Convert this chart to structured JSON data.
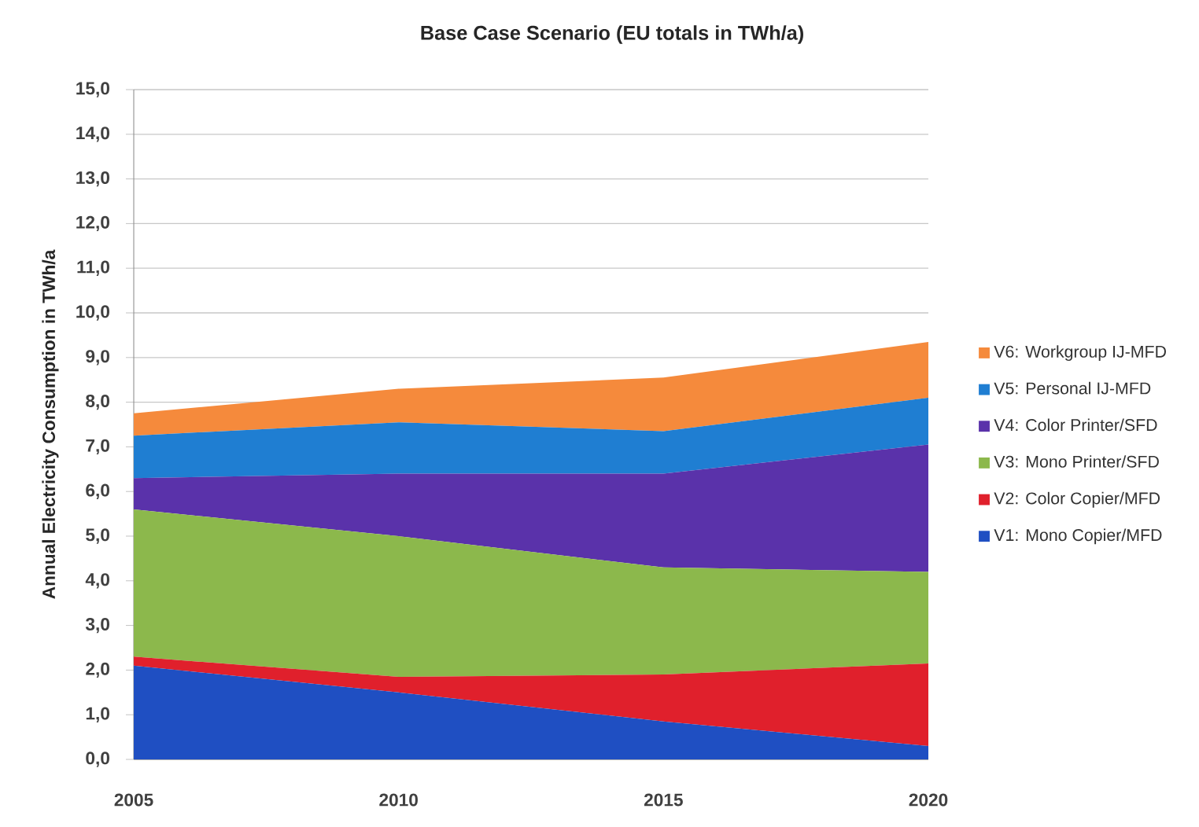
{
  "chart_data": {
    "type": "area",
    "title": "Base Case Scenario (EU totals in TWh/a)",
    "ylabel": "Annual Electricity Consumption in TWh/a",
    "x": [
      2005,
      2010,
      2015,
      2020
    ],
    "xlim": [
      2005,
      2020
    ],
    "xticks": [
      2005,
      2010,
      2015,
      2020
    ],
    "ylim": [
      0,
      15
    ],
    "yticks": [
      {
        "value": 0,
        "label": "0,0"
      },
      {
        "value": 1,
        "label": "1,0"
      },
      {
        "value": 2,
        "label": "2,0"
      },
      {
        "value": 3,
        "label": "3,0"
      },
      {
        "value": 4,
        "label": "4,0"
      },
      {
        "value": 5,
        "label": "5,0"
      },
      {
        "value": 6,
        "label": "6,0"
      },
      {
        "value": 7,
        "label": "7,0"
      },
      {
        "value": 8,
        "label": "8,0"
      },
      {
        "value": 9,
        "label": "9,0"
      },
      {
        "value": 10,
        "label": "10,0"
      },
      {
        "value": 11,
        "label": "11,0"
      },
      {
        "value": 12,
        "label": "12,0"
      },
      {
        "value": 13,
        "label": "13,0"
      },
      {
        "value": 14,
        "label": "14,0"
      },
      {
        "value": 15,
        "label": "15,0"
      }
    ],
    "stacked": true,
    "grid": "y",
    "legend": "right",
    "series": [
      {
        "name": "V1: Mono Copier/MFD",
        "color": "#1f4fc2",
        "values": [
          2.1,
          1.5,
          0.85,
          0.3
        ]
      },
      {
        "name": "V2: Color Copier/MFD",
        "color": "#e0202c",
        "values": [
          0.2,
          0.35,
          1.05,
          1.85
        ]
      },
      {
        "name": "V3: Mono Printer/SFD",
        "color": "#8cb84c",
        "values": [
          3.3,
          3.15,
          2.4,
          2.05
        ]
      },
      {
        "name": "V4: Color Printer/SFD",
        "color": "#5a32aa",
        "values": [
          0.7,
          1.4,
          2.1,
          2.85
        ]
      },
      {
        "name": "V5: Personal IJ-MFD",
        "color": "#1f7ed2",
        "values": [
          0.95,
          1.15,
          0.95,
          1.05
        ]
      },
      {
        "name": "V6: Workgroup IJ-MFD",
        "color": "#f58a3c",
        "values": [
          0.5,
          0.75,
          1.2,
          1.25
        ]
      }
    ]
  }
}
